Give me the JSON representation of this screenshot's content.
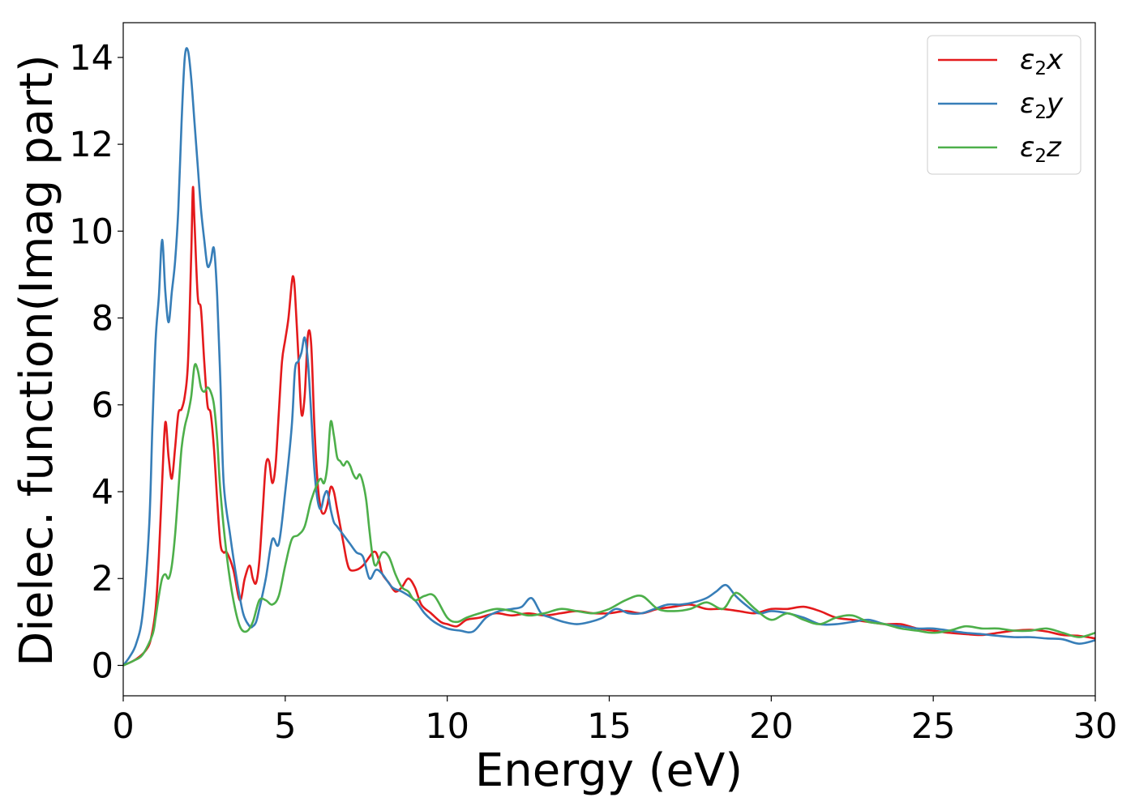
{
  "chart_data": {
    "type": "line",
    "title": "",
    "xlabel": "Energy (eV)",
    "ylabel": "Dielec. function(Imag part)",
    "xlim": [
      0,
      30
    ],
    "ylim": [
      -0.7,
      14.8
    ],
    "xticks": [
      0,
      5,
      10,
      15,
      20,
      25,
      30
    ],
    "yticks": [
      0,
      2,
      4,
      6,
      8,
      10,
      12,
      14
    ],
    "grid": false,
    "legend_position": "top-right",
    "series": [
      {
        "name": "ε₂x",
        "label_main": "ε",
        "label_sub": "2",
        "label_suffix": "x",
        "color": "#e41a1c",
        "x": [
          0,
          0.3,
          0.5,
          0.7,
          0.85,
          1.0,
          1.1,
          1.2,
          1.3,
          1.4,
          1.5,
          1.6,
          1.7,
          1.8,
          1.9,
          2.0,
          2.1,
          2.15,
          2.2,
          2.3,
          2.4,
          2.5,
          2.6,
          2.7,
          2.8,
          2.9,
          3.0,
          3.1,
          3.2,
          3.4,
          3.6,
          3.75,
          3.9,
          4.0,
          4.1,
          4.2,
          4.3,
          4.4,
          4.5,
          4.6,
          4.7,
          4.8,
          4.9,
          5.0,
          5.1,
          5.2,
          5.25,
          5.3,
          5.4,
          5.5,
          5.6,
          5.7,
          5.8,
          5.9,
          6.0,
          6.1,
          6.2,
          6.3,
          6.4,
          6.5,
          6.6,
          6.7,
          6.8,
          6.9,
          7.0,
          7.2,
          7.4,
          7.6,
          7.7,
          7.8,
          7.9,
          8.0,
          8.2,
          8.4,
          8.6,
          8.8,
          9.0,
          9.2,
          9.5,
          9.8,
          10.0,
          10.3,
          10.6,
          11.0,
          11.5,
          12.0,
          12.5,
          13.0,
          13.5,
          14.0,
          14.5,
          15.0,
          15.5,
          16.0,
          16.5,
          17.0,
          17.5,
          18.0,
          18.5,
          19.0,
          19.5,
          20.0,
          20.5,
          21.0,
          21.5,
          22.0,
          22.5,
          23.0,
          23.5,
          24.0,
          24.5,
          25.0,
          25.5,
          26.0,
          26.5,
          27.0,
          27.5,
          28.0,
          28.5,
          29.0,
          29.5,
          30.0
        ],
        "values": [
          0,
          0.1,
          0.2,
          0.35,
          0.6,
          1.3,
          2.5,
          4.2,
          5.6,
          4.8,
          4.3,
          5.0,
          5.8,
          5.9,
          6.2,
          7.0,
          9.5,
          11.0,
          10.2,
          8.5,
          8.2,
          7.0,
          6.0,
          5.8,
          5.0,
          3.8,
          2.8,
          2.6,
          2.6,
          2.2,
          1.5,
          2.0,
          2.3,
          2.0,
          1.9,
          2.4,
          3.5,
          4.6,
          4.7,
          4.2,
          4.6,
          5.8,
          7.0,
          7.5,
          8.0,
          8.8,
          8.95,
          8.6,
          7.2,
          5.8,
          6.2,
          7.6,
          7.4,
          5.5,
          4.2,
          3.6,
          3.5,
          3.7,
          4.1,
          4.0,
          3.6,
          3.2,
          2.8,
          2.4,
          2.2,
          2.2,
          2.3,
          2.5,
          2.6,
          2.6,
          2.4,
          2.1,
          1.9,
          1.7,
          1.8,
          2.0,
          1.8,
          1.4,
          1.2,
          1.0,
          0.95,
          0.9,
          1.05,
          1.1,
          1.2,
          1.15,
          1.2,
          1.15,
          1.2,
          1.25,
          1.2,
          1.2,
          1.25,
          1.2,
          1.3,
          1.35,
          1.4,
          1.3,
          1.3,
          1.25,
          1.2,
          1.3,
          1.3,
          1.35,
          1.25,
          1.1,
          1.05,
          1.0,
          0.95,
          0.95,
          0.85,
          0.8,
          0.75,
          0.72,
          0.7,
          0.75,
          0.8,
          0.82,
          0.78,
          0.7,
          0.68,
          0.62
        ]
      },
      {
        "name": "ε₂y",
        "label_main": "ε",
        "label_sub": "2",
        "label_suffix": "y",
        "color": "#377eb8",
        "x": [
          0,
          0.2,
          0.4,
          0.6,
          0.8,
          0.9,
          1.0,
          1.1,
          1.2,
          1.3,
          1.4,
          1.5,
          1.6,
          1.7,
          1.8,
          1.9,
          2.0,
          2.1,
          2.2,
          2.3,
          2.4,
          2.5,
          2.6,
          2.7,
          2.8,
          2.9,
          3.0,
          3.1,
          3.3,
          3.5,
          3.7,
          3.9,
          4.0,
          4.1,
          4.2,
          4.4,
          4.6,
          4.8,
          5.0,
          5.2,
          5.3,
          5.4,
          5.5,
          5.6,
          5.7,
          5.8,
          5.9,
          6.0,
          6.1,
          6.2,
          6.3,
          6.4,
          6.5,
          6.6,
          6.8,
          7.0,
          7.2,
          7.4,
          7.6,
          7.8,
          8.0,
          8.3,
          8.6,
          9.0,
          9.3,
          9.6,
          10.0,
          10.4,
          10.8,
          11.2,
          11.6,
          12.0,
          12.3,
          12.6,
          12.9,
          13.2,
          13.6,
          14.0,
          14.4,
          14.8,
          15.2,
          15.6,
          16.0,
          16.4,
          16.8,
          17.2,
          17.6,
          18.0,
          18.3,
          18.6,
          18.9,
          19.2,
          19.6,
          20.0,
          20.5,
          21.0,
          21.5,
          22.0,
          22.5,
          23.0,
          23.5,
          24.0,
          24.5,
          25.0,
          25.5,
          26.0,
          26.5,
          27.0,
          27.5,
          28.0,
          28.5,
          29.0,
          29.5,
          30.0
        ],
        "values": [
          0,
          0.2,
          0.5,
          1.2,
          3.2,
          5.5,
          7.5,
          8.5,
          9.8,
          8.6,
          7.9,
          8.6,
          9.3,
          10.5,
          12.5,
          14.0,
          14.15,
          13.5,
          12.5,
          11.5,
          10.5,
          9.8,
          9.2,
          9.3,
          9.6,
          8.5,
          6.5,
          4.2,
          3.0,
          2.0,
          1.2,
          0.9,
          0.9,
          1.0,
          1.3,
          2.0,
          2.9,
          2.8,
          4.0,
          5.5,
          6.8,
          7.0,
          7.2,
          7.55,
          7.0,
          5.8,
          4.5,
          3.8,
          3.6,
          3.9,
          4.0,
          3.6,
          3.3,
          3.2,
          3.0,
          2.8,
          2.6,
          2.5,
          2.0,
          2.2,
          2.1,
          1.8,
          1.7,
          1.5,
          1.2,
          1.0,
          0.85,
          0.8,
          0.78,
          1.1,
          1.25,
          1.3,
          1.35,
          1.55,
          1.2,
          1.1,
          1.0,
          0.95,
          1.0,
          1.1,
          1.3,
          1.2,
          1.2,
          1.3,
          1.4,
          1.4,
          1.45,
          1.55,
          1.7,
          1.85,
          1.6,
          1.4,
          1.2,
          1.25,
          1.2,
          1.1,
          0.95,
          0.95,
          1.0,
          1.05,
          0.95,
          0.9,
          0.85,
          0.85,
          0.8,
          0.75,
          0.72,
          0.68,
          0.65,
          0.65,
          0.62,
          0.6,
          0.5,
          0.58
        ]
      },
      {
        "name": "ε₂z",
        "label_main": "ε",
        "label_sub": "2",
        "label_suffix": "z",
        "color": "#4daf4a",
        "x": [
          0,
          0.3,
          0.6,
          0.9,
          1.0,
          1.1,
          1.2,
          1.3,
          1.4,
          1.5,
          1.6,
          1.7,
          1.8,
          1.9,
          2.0,
          2.1,
          2.2,
          2.3,
          2.4,
          2.5,
          2.6,
          2.7,
          2.8,
          2.9,
          3.0,
          3.2,
          3.4,
          3.6,
          3.8,
          4.0,
          4.2,
          4.4,
          4.6,
          4.8,
          5.0,
          5.2,
          5.4,
          5.6,
          5.8,
          6.0,
          6.1,
          6.2,
          6.3,
          6.4,
          6.5,
          6.6,
          6.7,
          6.8,
          6.9,
          7.0,
          7.1,
          7.2,
          7.3,
          7.4,
          7.5,
          7.6,
          7.7,
          7.8,
          8.0,
          8.2,
          8.4,
          8.6,
          8.8,
          9.0,
          9.3,
          9.6,
          10.0,
          10.3,
          10.6,
          11.0,
          11.5,
          12.0,
          12.5,
          13.0,
          13.5,
          14.0,
          14.5,
          15.0,
          15.5,
          16.0,
          16.5,
          17.0,
          17.5,
          18.0,
          18.5,
          18.8,
          19.0,
          19.5,
          20.0,
          20.5,
          21.0,
          21.5,
          22.0,
          22.5,
          23.0,
          23.5,
          24.0,
          24.5,
          25.0,
          25.5,
          26.0,
          26.5,
          27.0,
          27.5,
          28.0,
          28.5,
          29.0,
          29.5,
          30.0
        ],
        "values": [
          0,
          0.1,
          0.25,
          0.7,
          1.1,
          1.6,
          2.0,
          2.1,
          2.0,
          2.3,
          3.0,
          4.0,
          5.0,
          5.5,
          5.8,
          6.2,
          6.9,
          6.8,
          6.4,
          6.3,
          6.4,
          6.3,
          6.0,
          5.2,
          4.0,
          2.5,
          1.5,
          0.9,
          0.78,
          1.0,
          1.5,
          1.5,
          1.4,
          1.6,
          2.3,
          2.9,
          3.0,
          3.2,
          3.8,
          4.2,
          4.3,
          4.2,
          4.6,
          5.6,
          5.3,
          4.8,
          4.7,
          4.6,
          4.7,
          4.6,
          4.4,
          4.3,
          4.4,
          4.2,
          3.8,
          3.1,
          2.5,
          2.3,
          2.6,
          2.5,
          2.1,
          1.8,
          1.7,
          1.5,
          1.6,
          1.6,
          1.1,
          1.0,
          1.1,
          1.2,
          1.3,
          1.25,
          1.15,
          1.2,
          1.3,
          1.25,
          1.2,
          1.3,
          1.5,
          1.6,
          1.3,
          1.25,
          1.3,
          1.45,
          1.3,
          1.6,
          1.65,
          1.3,
          1.05,
          1.2,
          1.05,
          0.95,
          1.1,
          1.15,
          1.0,
          0.95,
          0.85,
          0.8,
          0.75,
          0.8,
          0.9,
          0.85,
          0.85,
          0.8,
          0.8,
          0.85,
          0.75,
          0.65,
          0.75
        ]
      }
    ]
  }
}
